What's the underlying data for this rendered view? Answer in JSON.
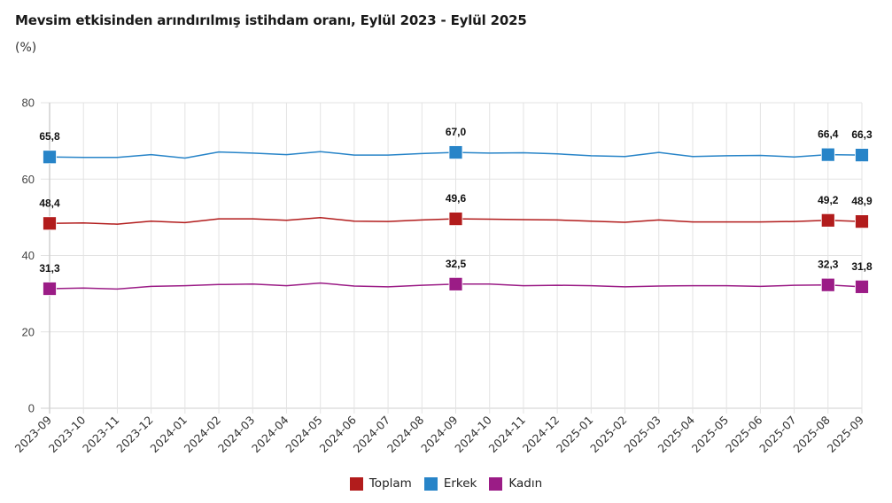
{
  "chart_data": {
    "type": "line",
    "title": "Mevsim etkisinden arındırılmış istihdam oranı, Eylül 2023 - Eylül 2025",
    "subtitle": "(%)",
    "xlabel": "",
    "ylabel": "",
    "ylim": [
      0,
      80
    ],
    "yticks": [
      0,
      20,
      40,
      60,
      80
    ],
    "grid": true,
    "legend_position": "bottom",
    "categories": [
      "2023-09",
      "2023-10",
      "2023-11",
      "2023-12",
      "2024-01",
      "2024-02",
      "2024-03",
      "2024-04",
      "2024-05",
      "2024-06",
      "2024-07",
      "2024-08",
      "2024-09",
      "2024-10",
      "2024-11",
      "2024-12",
      "2025-01",
      "2025-02",
      "2025-03",
      "2025-04",
      "2025-05",
      "2025-06",
      "2025-07",
      "2025-08",
      "2025-09"
    ],
    "marked_indices": [
      0,
      12,
      23,
      24
    ],
    "series": [
      {
        "name": "Toplam",
        "color": "#B21C1C",
        "values": [
          48.4,
          48.5,
          48.2,
          49.0,
          48.6,
          49.6,
          49.6,
          49.2,
          49.9,
          49.0,
          48.9,
          49.3,
          49.6,
          49.5,
          49.4,
          49.3,
          49.0,
          48.7,
          49.3,
          48.8,
          48.8,
          48.8,
          48.9,
          49.2,
          48.9
        ],
        "labels": {
          "0": "48,4",
          "12": "49,6",
          "23": "49,2",
          "24": "48,9"
        }
      },
      {
        "name": "Erkek",
        "color": "#2784C8",
        "values": [
          65.8,
          65.7,
          65.7,
          66.4,
          65.5,
          67.1,
          66.8,
          66.4,
          67.2,
          66.3,
          66.3,
          66.7,
          67.0,
          66.8,
          66.9,
          66.6,
          66.1,
          65.9,
          67.0,
          65.9,
          66.1,
          66.2,
          65.8,
          66.4,
          66.3
        ],
        "labels": {
          "0": "65,8",
          "12": "67,0",
          "23": "66,4",
          "24": "66,3"
        }
      },
      {
        "name": "Kadın",
        "color": "#9B1C86",
        "values": [
          31.3,
          31.5,
          31.2,
          31.9,
          32.1,
          32.4,
          32.5,
          32.1,
          32.8,
          32.0,
          31.8,
          32.2,
          32.5,
          32.5,
          32.1,
          32.2,
          32.1,
          31.8,
          32.0,
          32.1,
          32.1,
          31.9,
          32.2,
          32.3,
          31.8
        ],
        "labels": {
          "0": "31,3",
          "12": "32,5",
          "23": "32,3",
          "24": "31,8"
        }
      }
    ]
  }
}
